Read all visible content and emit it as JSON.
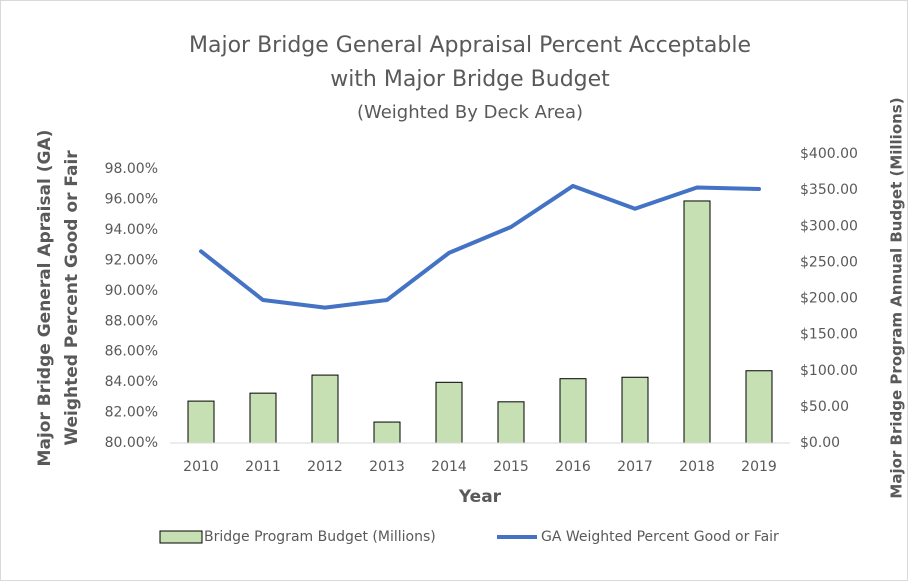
{
  "chart_data": {
    "type": "combo",
    "title": [
      "Major Bridge General Appraisal Percent Acceptable",
      "with Major Bridge Budget"
    ],
    "subtitle": "(Weighted By Deck Area)",
    "x_label": "Year",
    "y_label": [
      "Major Bridge General Apraisal (GA)",
      "Weighted Percent Good or Fair"
    ],
    "y2_label": "Major Bridge Program Annual Budget (Millions)",
    "categories": [
      "2010",
      "2011",
      "2012",
      "2013",
      "2014",
      "2015",
      "2016",
      "2017",
      "2018",
      "2019"
    ],
    "series": [
      {
        "name": "Bridge Program Budget (Millions)",
        "type": "bar",
        "axis": "y2",
        "color": "#c6e0b4",
        "values": [
          58,
          69,
          94,
          29,
          84,
          57,
          89,
          91,
          335,
          100
        ]
      },
      {
        "name": "GA Weighted Percent Good or Fair",
        "type": "line",
        "color": "#4472c4",
        "values": [
          92.6,
          89.4,
          88.9,
          89.4,
          92.5,
          94.2,
          96.9,
          95.4,
          96.8,
          96.7
        ]
      }
    ],
    "ylim": [
      80,
      99
    ],
    "yticks": [
      {
        "value": 80,
        "label": "80.00%"
      },
      {
        "value": 82,
        "label": "82.00%"
      },
      {
        "value": 84,
        "label": "84.00%"
      },
      {
        "value": 86,
        "label": "86.00%"
      },
      {
        "value": 88,
        "label": "88.00%"
      },
      {
        "value": 90,
        "label": "90.00%"
      },
      {
        "value": 92,
        "label": "92.00%"
      },
      {
        "value": 94,
        "label": "94.00%"
      },
      {
        "value": 96,
        "label": "96.00%"
      },
      {
        "value": 98,
        "label": "98.00%"
      }
    ],
    "y2lim": [
      0,
      400
    ],
    "y2ticks": [
      {
        "value": 0,
        "label": "$0.00"
      },
      {
        "value": 50,
        "label": "$50.00"
      },
      {
        "value": 100,
        "label": "$100.00"
      },
      {
        "value": 150,
        "label": "$150.00"
      },
      {
        "value": 200,
        "label": "$200.00"
      },
      {
        "value": 250,
        "label": "$250.00"
      },
      {
        "value": 300,
        "label": "$300.00"
      },
      {
        "value": 350,
        "label": "$350.00"
      },
      {
        "value": 400,
        "label": "$400.00"
      }
    ],
    "grid": false,
    "legend": "bottom"
  }
}
